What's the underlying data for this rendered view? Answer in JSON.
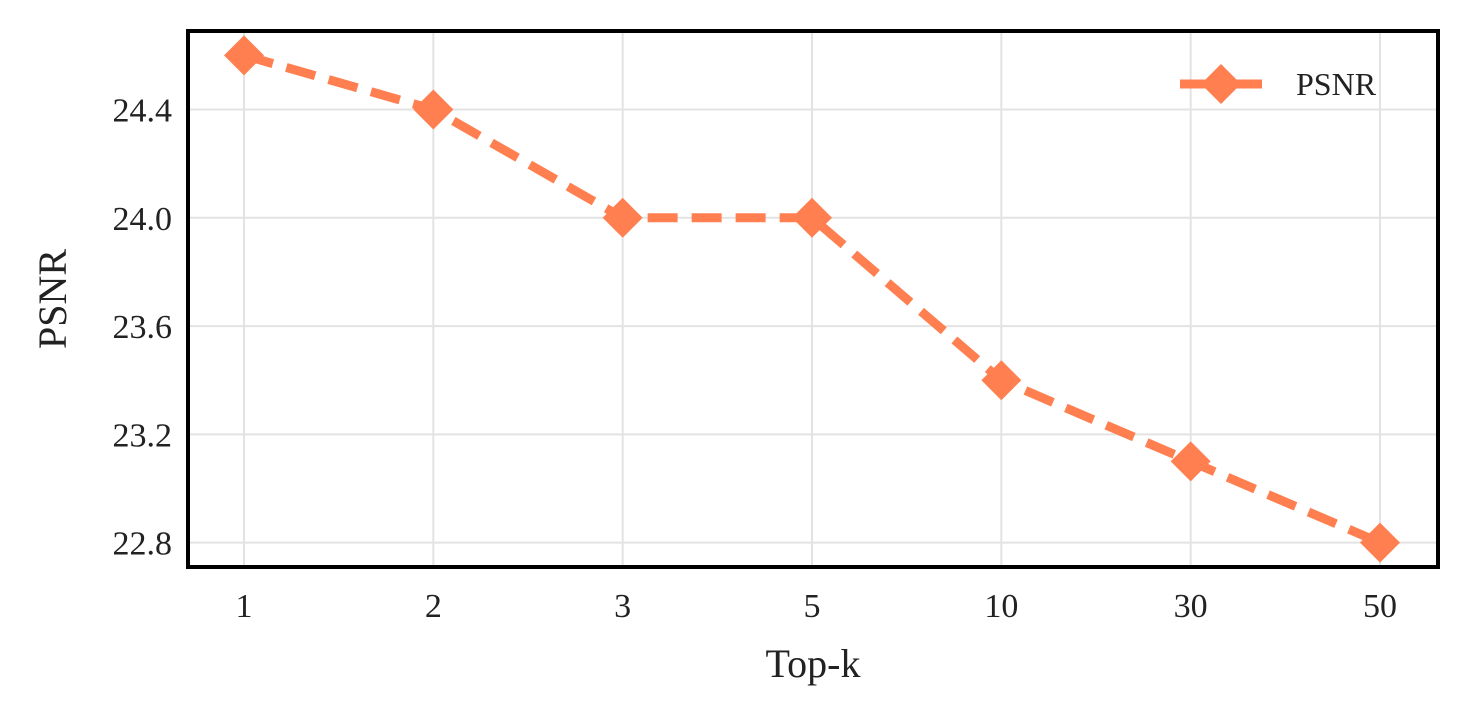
{
  "chart_data": {
    "type": "line",
    "title": "",
    "xlabel": "Top-k",
    "ylabel": "PSNR",
    "categories": [
      "1",
      "2",
      "3",
      "5",
      "10",
      "30",
      "50"
    ],
    "series": [
      {
        "name": "PSNR",
        "values": [
          24.6,
          24.4,
          24.0,
          24.0,
          23.4,
          23.1,
          22.8
        ]
      }
    ],
    "yticks": [
      "22.8",
      "23.2",
      "23.6",
      "24.0",
      "24.4"
    ],
    "ylim": [
      22.71,
      24.69
    ],
    "grid": true,
    "legend_position": "top-right",
    "line_style": "dashed",
    "marker": "diamond",
    "series_color": "#FF7F50"
  }
}
